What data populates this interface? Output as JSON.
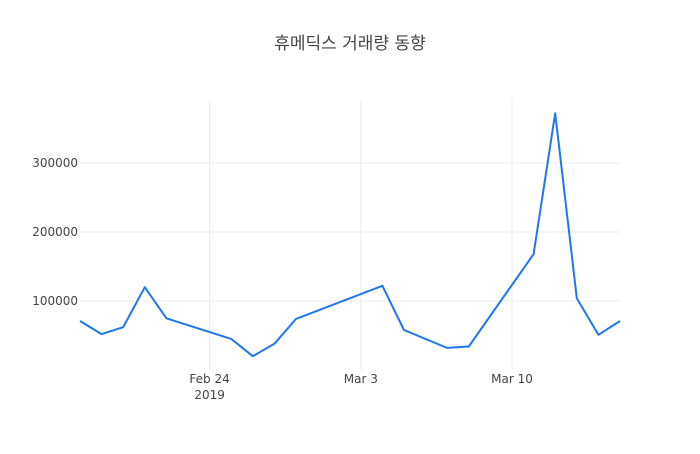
{
  "chart_data": {
    "type": "line",
    "title": "휴메딕스 거래량 동향",
    "xlabel": "",
    "ylabel": "",
    "line_color": "#1f77f0",
    "grid": true,
    "x": [
      "2019-02-18",
      "2019-02-19",
      "2019-02-20",
      "2019-02-21",
      "2019-02-22",
      "2019-02-25",
      "2019-02-26",
      "2019-02-27",
      "2019-02-28",
      "2019-03-04",
      "2019-03-05",
      "2019-03-07",
      "2019-03-08",
      "2019-03-11",
      "2019-03-12",
      "2019-03-13",
      "2019-03-14",
      "2019-03-15"
    ],
    "series": [
      {
        "name": "거래량",
        "values": [
          71000,
          52000,
          62000,
          120000,
          75000,
          45000,
          20000,
          38000,
          74000,
          122000,
          58000,
          32000,
          34000,
          168000,
          372000,
          104000,
          51000,
          71000
        ]
      }
    ],
    "xticks": [
      {
        "date": "2019-02-24",
        "label": "Feb 24",
        "sublabel": "2019"
      },
      {
        "date": "2019-03-03",
        "label": "Mar 3"
      },
      {
        "date": "2019-03-10",
        "label": "Mar 10"
      }
    ],
    "yticks": [
      {
        "value": 100000,
        "label": "100000"
      },
      {
        "value": 200000,
        "label": "200000"
      },
      {
        "value": 300000,
        "label": "300000"
      }
    ],
    "xlim": [
      "2019-02-18",
      "2019-03-15"
    ],
    "ylim": [
      0,
      390000
    ]
  }
}
